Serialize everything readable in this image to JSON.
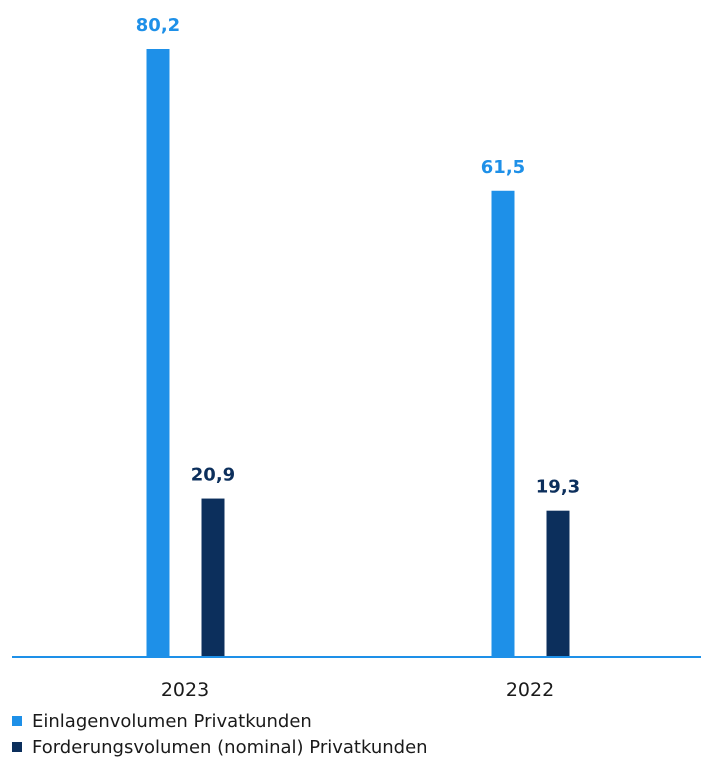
{
  "chart_data": {
    "type": "bar",
    "categories": [
      "2023",
      "2022"
    ],
    "series": [
      {
        "name": "Einlagenvolumen Privatkunden",
        "values": [
          80.2,
          61.5
        ],
        "labels": [
          "80,2",
          "61,5"
        ],
        "color": "#1e90e8"
      },
      {
        "name": "Forderungsvolumen (nominal) Privatkunden",
        "values": [
          20.9,
          19.3
        ],
        "labels": [
          "20,9",
          "19,3"
        ],
        "color": "#0c2f5c"
      }
    ],
    "title": "",
    "xlabel": "",
    "ylabel": "",
    "ylim": [
      0,
      80.2
    ],
    "grid": false,
    "legend_position": "bottom-left",
    "axis_color": "#1e90e8"
  }
}
